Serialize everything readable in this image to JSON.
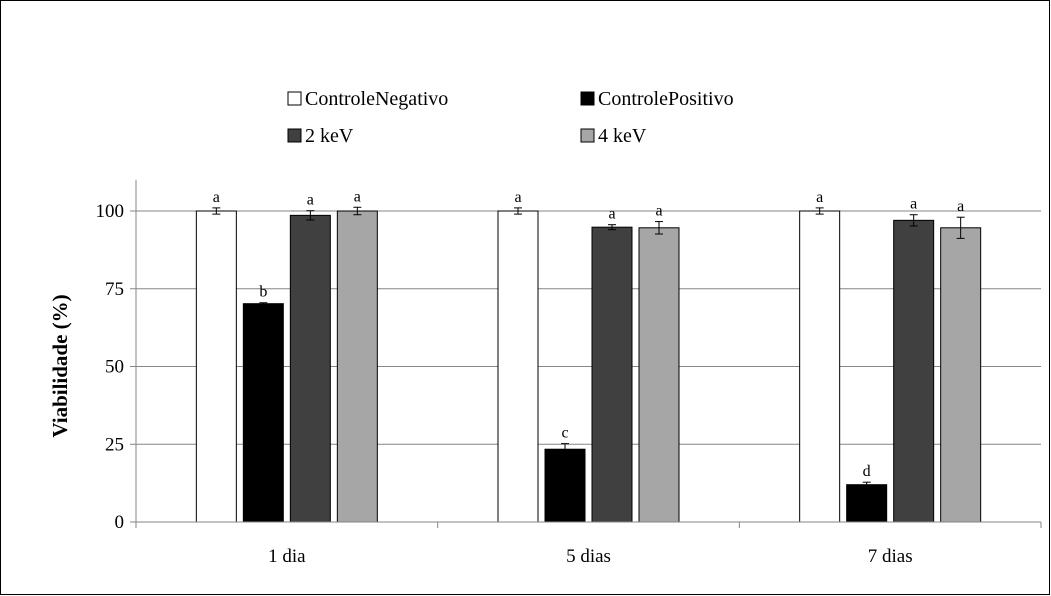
{
  "chart_data": {
    "type": "bar",
    "title": "",
    "xlabel": "",
    "ylabel": "Viabilidade (%)",
    "ylim": [
      0,
      110
    ],
    "yticks": [
      0,
      25,
      50,
      75,
      100
    ],
    "grid": true,
    "legend_position": "top",
    "categories": [
      "1 dia",
      "5 dias",
      "7 dias"
    ],
    "series": [
      {
        "name": "ControleNegativo",
        "color": "#ffffff",
        "values": [
          100,
          100,
          100
        ],
        "errors": [
          1.0,
          1.0,
          1.0
        ],
        "labels": [
          "a",
          "a",
          "a"
        ]
      },
      {
        "name": "ControlePositivo",
        "color": "#000000",
        "values": [
          70.2,
          23.4,
          12.0
        ],
        "errors": [
          0.3,
          1.8,
          0.8
        ],
        "labels": [
          "b",
          "c",
          "d"
        ]
      },
      {
        "name": "2 keV",
        "color": "#404040",
        "values": [
          98.6,
          94.8,
          97.0
        ],
        "errors": [
          1.5,
          0.8,
          1.8
        ],
        "labels": [
          "a",
          "a",
          "a"
        ]
      },
      {
        "name": "4 keV",
        "color": "#a6a6a6",
        "values": [
          100,
          94.6,
          94.6
        ],
        "errors": [
          1.2,
          2.0,
          3.4
        ],
        "labels": [
          "a",
          "a",
          "a"
        ]
      }
    ]
  }
}
